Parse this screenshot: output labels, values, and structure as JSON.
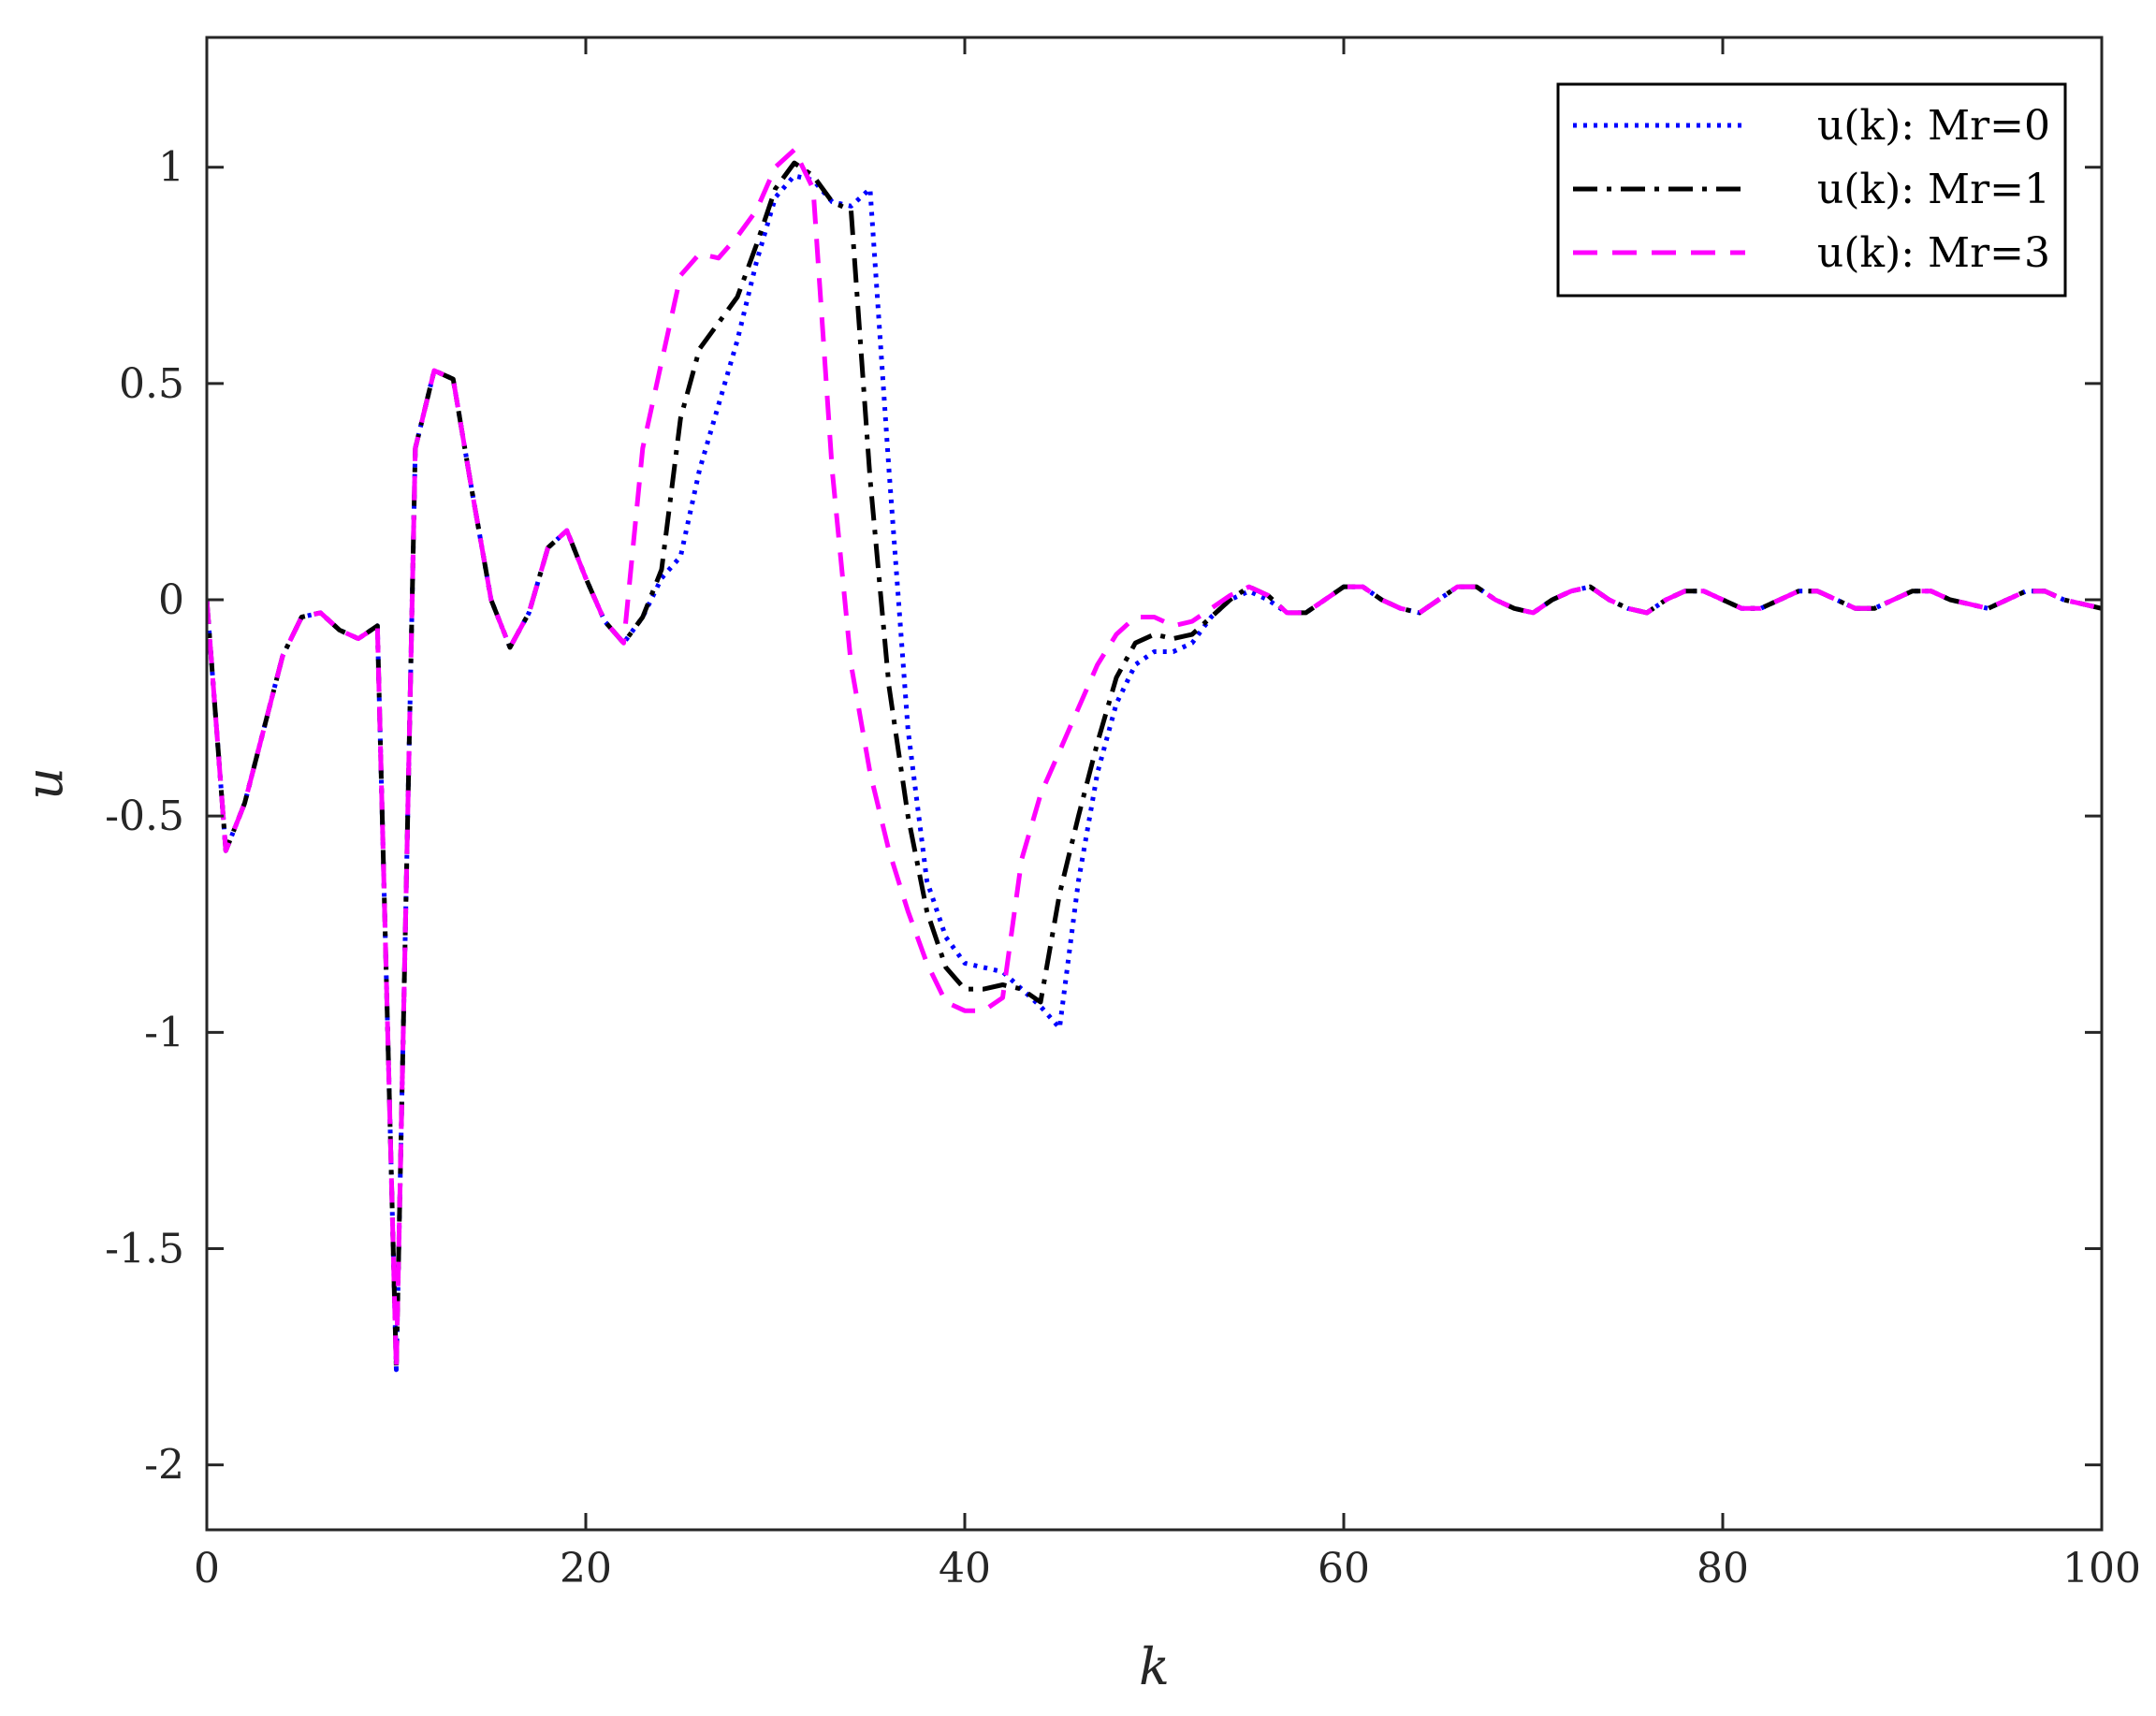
{
  "chart_data": {
    "type": "line",
    "title": "",
    "xlabel": "k",
    "ylabel": "u",
    "xlim": [
      0,
      100
    ],
    "ylim": [
      -2.15,
      1.3
    ],
    "xticks": [
      0,
      20,
      40,
      60,
      80,
      100
    ],
    "yticks": [
      -2,
      -1.5,
      -1,
      -0.5,
      0,
      0.5,
      1
    ],
    "xtick_labels": [
      "0",
      "20",
      "40",
      "60",
      "80",
      "100"
    ],
    "ytick_labels": [
      "-2",
      "-1.5",
      "-1",
      "-0.5",
      "0",
      "0.5",
      "1"
    ],
    "grid": false,
    "legend_position": "top-right",
    "series": [
      {
        "name": "u(k): M_r=0",
        "legend_label": "u(k):  Mr=0",
        "color": "#0000ff",
        "style": "dotted",
        "x": [
          0,
          1,
          2,
          3,
          4,
          5,
          6,
          7,
          8,
          9,
          10,
          11,
          12,
          13,
          14,
          15,
          16,
          17,
          18,
          19,
          20,
          21,
          22,
          23,
          24,
          25,
          26,
          27,
          28,
          29,
          30,
          31,
          32,
          33,
          34,
          35,
          36,
          37,
          38,
          39,
          40,
          41,
          42,
          43,
          44,
          45,
          46,
          47,
          48,
          49,
          50,
          51,
          52,
          53,
          54,
          55,
          56,
          57,
          58,
          59,
          60,
          61,
          62,
          63,
          64,
          65,
          66,
          67,
          68,
          69,
          70,
          71,
          72,
          73,
          74,
          75,
          76,
          77,
          78,
          79,
          80,
          81,
          82,
          83,
          84,
          85,
          86,
          87,
          88,
          89,
          90,
          91,
          92,
          93,
          94,
          95,
          96,
          97,
          98,
          99,
          100
        ],
        "values": [
          0,
          -0.58,
          -0.47,
          -0.3,
          -0.13,
          -0.04,
          -0.03,
          -0.07,
          -0.09,
          -0.06,
          -1.78,
          0.35,
          0.53,
          0.51,
          0.25,
          0,
          -0.11,
          -0.03,
          0.12,
          0.16,
          0.05,
          -0.05,
          -0.1,
          -0.04,
          0.05,
          0.1,
          0.3,
          0.45,
          0.6,
          0.78,
          0.93,
          0.98,
          0.97,
          0.92,
          0.91,
          0.95,
          0.3,
          -0.3,
          -0.65,
          -0.78,
          -0.84,
          -0.85,
          -0.86,
          -0.9,
          -0.94,
          -0.99,
          -0.65,
          -0.4,
          -0.24,
          -0.15,
          -0.12,
          -0.12,
          -0.1,
          -0.04,
          0,
          0.02,
          0,
          -0.03,
          -0.03,
          0,
          0.03,
          0.03,
          0,
          -0.02,
          -0.03,
          0,
          0.03,
          0.03,
          0,
          -0.02,
          -0.03,
          0,
          0.02,
          0.03,
          0,
          -0.02,
          -0.03,
          0,
          0.02,
          0.02,
          0,
          -0.02,
          -0.02,
          0,
          0.02,
          0.02,
          0,
          -0.02,
          -0.02,
          0,
          0.02,
          0.02,
          0,
          -0.01,
          -0.02,
          0,
          0.02,
          0.02,
          0,
          -0.01,
          -0.02
        ]
      },
      {
        "name": "u(k): M_r=1",
        "legend_label": "u(k):  Mr=1",
        "color": "#000000",
        "style": "dashdot",
        "x": [
          0,
          1,
          2,
          3,
          4,
          5,
          6,
          7,
          8,
          9,
          10,
          11,
          12,
          13,
          14,
          15,
          16,
          17,
          18,
          19,
          20,
          21,
          22,
          23,
          24,
          25,
          26,
          27,
          28,
          29,
          30,
          31,
          32,
          33,
          34,
          35,
          36,
          37,
          38,
          39,
          40,
          41,
          42,
          43,
          44,
          45,
          46,
          47,
          48,
          49,
          50,
          51,
          52,
          53,
          54,
          55,
          56,
          57,
          58,
          59,
          60,
          61,
          62,
          63,
          64,
          65,
          66,
          67,
          68,
          69,
          70,
          71,
          72,
          73,
          74,
          75,
          76,
          77,
          78,
          79,
          80,
          81,
          82,
          83,
          84,
          85,
          86,
          87,
          88,
          89,
          90,
          91,
          92,
          93,
          94,
          95,
          96,
          97,
          98,
          99,
          100
        ],
        "values": [
          0,
          -0.58,
          -0.47,
          -0.3,
          -0.13,
          -0.04,
          -0.03,
          -0.07,
          -0.09,
          -0.06,
          -1.78,
          0.35,
          0.53,
          0.51,
          0.25,
          0,
          -0.11,
          -0.03,
          0.12,
          0.16,
          0.05,
          -0.05,
          -0.1,
          -0.04,
          0.07,
          0.42,
          0.58,
          0.64,
          0.7,
          0.82,
          0.95,
          1.01,
          0.98,
          0.92,
          0.9,
          0.28,
          -0.2,
          -0.5,
          -0.72,
          -0.85,
          -0.9,
          -0.9,
          -0.89,
          -0.9,
          -0.93,
          -0.68,
          -0.5,
          -0.33,
          -0.18,
          -0.1,
          -0.08,
          -0.09,
          -0.08,
          -0.04,
          0,
          0.03,
          0.01,
          -0.03,
          -0.03,
          0,
          0.03,
          0.03,
          0,
          -0.02,
          -0.03,
          0,
          0.03,
          0.03,
          0,
          -0.02,
          -0.03,
          0,
          0.02,
          0.03,
          0,
          -0.02,
          -0.03,
          0,
          0.02,
          0.02,
          0,
          -0.02,
          -0.02,
          0,
          0.02,
          0.02,
          0,
          -0.02,
          -0.02,
          0,
          0.02,
          0.02,
          0,
          -0.01,
          -0.02,
          0,
          0.02,
          0.02,
          0,
          -0.01,
          -0.02
        ]
      },
      {
        "name": "u(k): M_r=3",
        "legend_label": "u(k):  Mr=3",
        "color": "#ff00ff",
        "style": "dashed",
        "x": [
          0,
          1,
          2,
          3,
          4,
          5,
          6,
          7,
          8,
          9,
          10,
          11,
          12,
          13,
          14,
          15,
          16,
          17,
          18,
          19,
          20,
          21,
          22,
          23,
          24,
          25,
          26,
          27,
          28,
          29,
          30,
          31,
          32,
          33,
          34,
          35,
          36,
          37,
          38,
          39,
          40,
          41,
          42,
          43,
          44,
          45,
          46,
          47,
          48,
          49,
          50,
          51,
          52,
          53,
          54,
          55,
          56,
          57,
          58,
          59,
          60,
          61,
          62,
          63,
          64,
          65,
          66,
          67,
          68,
          69,
          70,
          71,
          72,
          73,
          74,
          75,
          76,
          77,
          78,
          79,
          80,
          81,
          82,
          83,
          84,
          85,
          86,
          87,
          88,
          89,
          90,
          91,
          92,
          93,
          94,
          95,
          96,
          97,
          98,
          99,
          100
        ],
        "values": [
          0,
          -0.58,
          -0.47,
          -0.3,
          -0.13,
          -0.04,
          -0.03,
          -0.07,
          -0.09,
          -0.06,
          -1.78,
          0.35,
          0.53,
          0.51,
          0.25,
          0,
          -0.11,
          -0.03,
          0.12,
          0.16,
          0.05,
          -0.05,
          -0.1,
          0.35,
          0.55,
          0.75,
          0.8,
          0.79,
          0.84,
          0.9,
          1.0,
          1.04,
          0.95,
          0.3,
          -0.15,
          -0.4,
          -0.58,
          -0.72,
          -0.84,
          -0.93,
          -0.95,
          -0.95,
          -0.92,
          -0.6,
          -0.45,
          -0.35,
          -0.25,
          -0.15,
          -0.08,
          -0.04,
          -0.04,
          -0.06,
          -0.05,
          -0.02,
          0.01,
          0.03,
          0.01,
          -0.03,
          -0.03,
          0,
          0.03,
          0.03,
          0,
          -0.02,
          -0.03,
          0,
          0.03,
          0.03,
          0,
          -0.02,
          -0.03,
          0,
          0.02,
          0.03,
          0,
          -0.02,
          -0.03,
          0,
          0.02,
          0.02,
          0,
          -0.02,
          -0.02,
          0,
          0.02,
          0.02,
          0,
          -0.02,
          -0.02,
          0,
          0.02,
          0.02,
          0,
          -0.01,
          -0.02,
          0,
          0.02,
          0.02,
          0,
          -0.01,
          -0.02
        ]
      }
    ]
  }
}
